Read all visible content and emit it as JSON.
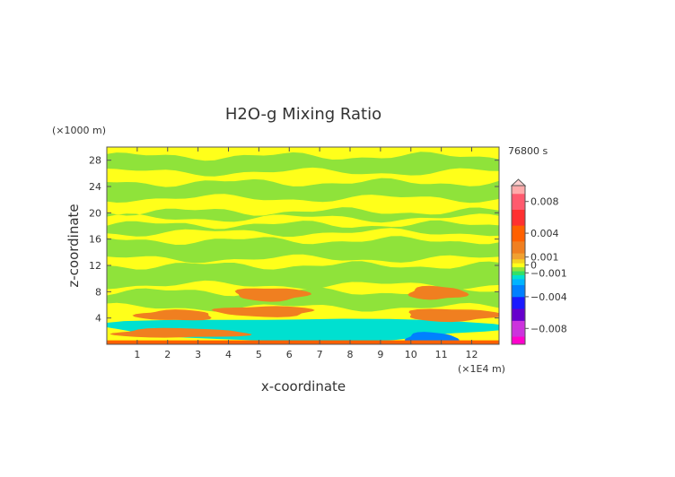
{
  "chart_data": {
    "type": "heatmap",
    "title": "H2O-g Mixing Ratio",
    "xlabel": "x-coordinate",
    "ylabel": "z-coordinate",
    "x_unit": "(×1E4 m)",
    "y_unit": "(×1000 m)",
    "time_label": "76800 s",
    "xlim": [
      0,
      12.9
    ],
    "ylim": [
      0,
      30
    ],
    "x_ticks": [
      1,
      2,
      3,
      4,
      5,
      6,
      7,
      8,
      9,
      10,
      11,
      12
    ],
    "y_ticks": [
      4,
      8,
      12,
      16,
      20,
      24,
      28
    ],
    "colorbar": {
      "range": [
        -0.01,
        0.01
      ],
      "tick_values": [
        0.008,
        0.004,
        0.001,
        0,
        -0.001,
        -0.004,
        -0.008
      ],
      "tick_labels": [
        "0.008",
        "0.004",
        "0.001",
        "0",
        "−0.001",
        "−0.004",
        "−0.008"
      ],
      "stops": [
        {
          "v": -0.01,
          "color": "#ff00cc"
        },
        {
          "v": -0.008,
          "color": "#cc33dd"
        },
        {
          "v": -0.006,
          "color": "#6600cc"
        },
        {
          "v": -0.005,
          "color": "#1a1aff"
        },
        {
          "v": -0.003,
          "color": "#0080ff"
        },
        {
          "v": -0.002,
          "color": "#00b4ff"
        },
        {
          "v": -0.0015,
          "color": "#00e0d0"
        },
        {
          "v": -0.001,
          "color": "#33e066"
        },
        {
          "v": -0.0005,
          "color": "#8fe33a"
        },
        {
          "v": 0.0,
          "color": "#ffff1a"
        },
        {
          "v": 0.0005,
          "color": "#f5d21f"
        },
        {
          "v": 0.001,
          "color": "#f0a030"
        },
        {
          "v": 0.002,
          "color": "#f07f20"
        },
        {
          "v": 0.004,
          "color": "#ff6000"
        },
        {
          "v": 0.006,
          "color": "#ff3030"
        },
        {
          "v": 0.008,
          "color": "#ff5a6e"
        },
        {
          "v": 0.01,
          "color": "#ffaaaa"
        }
      ]
    },
    "fields": {
      "background": {
        "color": "#ffff1a",
        "value": 0
      },
      "green_bands_z": [
        {
          "z_min": 26.2,
          "z_max": 28.6,
          "value": -0.0006
        },
        {
          "z_min": 22.2,
          "z_max": 24.6,
          "value": -0.0006
        },
        {
          "z_min": 19.2,
          "z_max": 20.2,
          "value": -0.0006
        },
        {
          "z_min": 17.0,
          "z_max": 18.2,
          "value": -0.0006
        },
        {
          "z_min": 13.0,
          "z_max": 15.8,
          "value": -0.0006
        },
        {
          "z_min": 9.0,
          "z_max": 12.0,
          "value": -0.0006
        },
        {
          "z_min": 5.6,
          "z_max": 8.0,
          "value": -0.0006
        }
      ],
      "orange_patches": [
        {
          "x_min": 4.2,
          "x_max": 6.6,
          "z_min": 6.6,
          "z_max": 8.6,
          "value": 0.002
        },
        {
          "x_min": 9.9,
          "x_max": 11.8,
          "z_min": 6.8,
          "z_max": 8.8,
          "value": 0.002
        },
        {
          "x_min": 1.0,
          "x_max": 3.5,
          "z_min": 3.6,
          "z_max": 5.2,
          "value": 0.002
        },
        {
          "x_min": 3.6,
          "x_max": 6.8,
          "z_min": 4.2,
          "z_max": 5.8,
          "value": 0.002
        },
        {
          "x_min": 9.8,
          "x_max": 12.9,
          "z_min": 3.5,
          "z_max": 5.4,
          "value": 0.002
        },
        {
          "x_min": 0.2,
          "x_max": 4.6,
          "z_min": 1.0,
          "z_max": 2.4,
          "value": 0.002
        }
      ],
      "cyan_patches": [
        {
          "x_min": 0.0,
          "x_max": 12.9,
          "z_min": 0.6,
          "z_max": 4.0,
          "value": -0.0015
        },
        {
          "x_min": 9.8,
          "x_max": 11.5,
          "z_min": 0.0,
          "z_max": 1.8,
          "value": -0.004
        }
      ]
    }
  }
}
